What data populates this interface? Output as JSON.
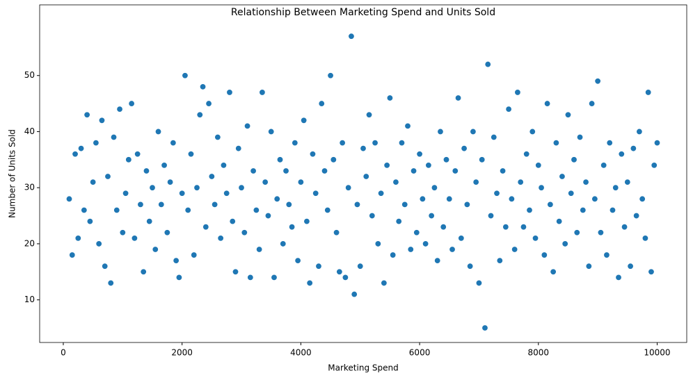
{
  "chart_data": {
    "type": "scatter",
    "title": "Relationship Between Marketing Spend and Units Sold",
    "x_label": "Marketing Spend",
    "y_label": "Number of Units Sold",
    "color": "#1f77b4",
    "grid": false,
    "xlim": [
      -398,
      10498
    ],
    "ylim": [
      2.4,
      62.6
    ],
    "xticks": [
      0,
      2000,
      4000,
      6000,
      8000,
      10000
    ],
    "yticks": [
      10,
      20,
      30,
      40,
      50
    ],
    "x": [
      100,
      150,
      200,
      250,
      300,
      350,
      400,
      450,
      500,
      550,
      600,
      650,
      700,
      750,
      800,
      850,
      900,
      950,
      1000,
      1050,
      1100,
      1150,
      1200,
      1250,
      1300,
      1350,
      1400,
      1450,
      1500,
      1550,
      1600,
      1650,
      1700,
      1750,
      1800,
      1850,
      1900,
      1950,
      2000,
      2050,
      2100,
      2150,
      2200,
      2250,
      2300,
      2350,
      2400,
      2450,
      2500,
      2550,
      2600,
      2650,
      2700,
      2750,
      2800,
      2850,
      2900,
      2950,
      3000,
      3050,
      3100,
      3150,
      3200,
      3250,
      3300,
      3350,
      3400,
      3450,
      3500,
      3550,
      3600,
      3650,
      3700,
      3750,
      3800,
      3850,
      3900,
      3950,
      4000,
      4050,
      4100,
      4150,
      4200,
      4250,
      4300,
      4350,
      4400,
      4450,
      4500,
      4550,
      4600,
      4650,
      4700,
      4750,
      4800,
      4850,
      4900,
      4950,
      5000,
      5050,
      5100,
      5150,
      5200,
      5250,
      5300,
      5350,
      5400,
      5450,
      5500,
      5550,
      5600,
      5650,
      5700,
      5750,
      5800,
      5850,
      5900,
      5950,
      6000,
      6050,
      6100,
      6150,
      6200,
      6250,
      6300,
      6350,
      6400,
      6450,
      6500,
      6550,
      6600,
      6650,
      6700,
      6750,
      6800,
      6850,
      6900,
      6950,
      7000,
      7050,
      7100,
      7150,
      7200,
      7250,
      7300,
      7350,
      7400,
      7450,
      7500,
      7550,
      7600,
      7650,
      7700,
      7750,
      7800,
      7850,
      7900,
      7950,
      8000,
      8050,
      8100,
      8150,
      8200,
      8250,
      8300,
      8350,
      8400,
      8450,
      8500,
      8550,
      8600,
      8650,
      8700,
      8750,
      8800,
      8850,
      8900,
      8950,
      9000,
      9050,
      9100,
      9150,
      9200,
      9250,
      9300,
      9350,
      9400,
      9450,
      9500,
      9550,
      9600,
      9650,
      9700,
      9750,
      9800,
      9850,
      9900,
      9950,
      10000
    ],
    "values": [
      28,
      18,
      36,
      21,
      37,
      26,
      43,
      24,
      31,
      38,
      20,
      42,
      16,
      32,
      13,
      39,
      26,
      44,
      22,
      29,
      35,
      45,
      21,
      36,
      27,
      15,
      33,
      24,
      30,
      19,
      40,
      27,
      34,
      22,
      31,
      38,
      17,
      14,
      29,
      50,
      26,
      36,
      18,
      30,
      43,
      48,
      23,
      45,
      32,
      27,
      39,
      21,
      34,
      29,
      47,
      24,
      15,
      37,
      30,
      22,
      41,
      14,
      33,
      26,
      19,
      47,
      31,
      25,
      40,
      14,
      28,
      35,
      20,
      33,
      27,
      23,
      38,
      17,
      31,
      42,
      24,
      13,
      36,
      29,
      16,
      45,
      33,
      26,
      50,
      35,
      22,
      15,
      38,
      14,
      30,
      57,
      11,
      27,
      16,
      37,
      32,
      43,
      25,
      38,
      20,
      29,
      13,
      34,
      46,
      18,
      31,
      24,
      38,
      27,
      41,
      19,
      33,
      22,
      36,
      28,
      20,
      34,
      25,
      30,
      17,
      40,
      23,
      35,
      28,
      19,
      33,
      46,
      21,
      37,
      27,
      16,
      40,
      31,
      13,
      35,
      5,
      52,
      25,
      39,
      29,
      17,
      33,
      23,
      44,
      28,
      19,
      47,
      31,
      23,
      36,
      26,
      40,
      21,
      34,
      30,
      18,
      45,
      27,
      15,
      38,
      24,
      32,
      20,
      43,
      29,
      35,
      22,
      39,
      26,
      31,
      16,
      45,
      28,
      49,
      22,
      34,
      18,
      38,
      26,
      30,
      14,
      36,
      23,
      31,
      16,
      37,
      25,
      40,
      28,
      21,
      47,
      15,
      34,
      38
    ]
  }
}
